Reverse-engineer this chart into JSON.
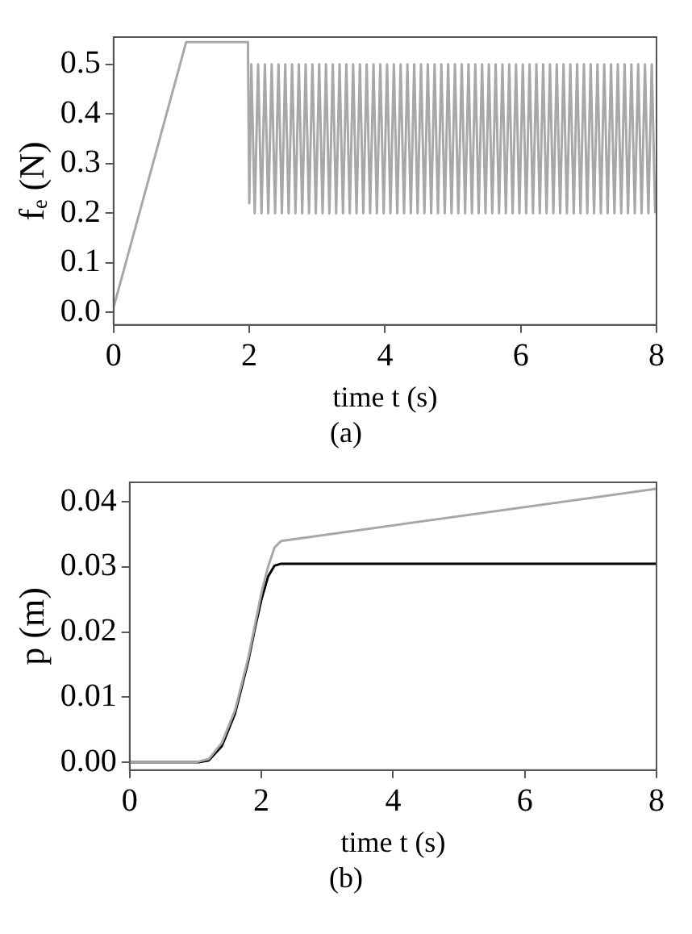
{
  "chart_data": [
    {
      "type": "line",
      "xlabel": "time t (s)",
      "ylabel": "fₑ (N)",
      "annotations": [
        "(a)"
      ],
      "xlim": [
        0,
        8
      ],
      "xticks": [
        0,
        2,
        4,
        6,
        8
      ],
      "ylim": [
        -0.025,
        0.555
      ],
      "yticks": [
        {
          "value": 0,
          "label": "0.0"
        },
        0.1,
        0.2,
        0.3,
        0.4,
        0.5
      ],
      "grid": false,
      "legend": false,
      "marker": "none",
      "series": [
        {
          "color": "#a8a8a8",
          "x": [
            0,
            1.07,
            1.98,
            2.0,
            2.03,
            2.08,
            2.13,
            2.18,
            2.23,
            2.28,
            2.33,
            2.38,
            2.43,
            2.48,
            2.53,
            2.58,
            2.63,
            2.68,
            2.73,
            2.78,
            2.83,
            2.88,
            2.93,
            2.98,
            3.03,
            3.08,
            3.13,
            3.18,
            3.23,
            3.28,
            3.33,
            3.38,
            3.43,
            3.48,
            3.53,
            3.58,
            3.63,
            3.68,
            3.73,
            3.78,
            3.83,
            3.88,
            3.93,
            3.98,
            4.03,
            4.08,
            4.13,
            4.18,
            4.23,
            4.28,
            4.33,
            4.38,
            4.43,
            4.48,
            4.53,
            4.58,
            4.63,
            4.68,
            4.73,
            4.78,
            4.83,
            4.88,
            4.93,
            4.98,
            5.03,
            5.08,
            5.13,
            5.18,
            5.23,
            5.28,
            5.33,
            5.38,
            5.43,
            5.48,
            5.53,
            5.58,
            5.63,
            5.68,
            5.73,
            5.78,
            5.83,
            5.88,
            5.93,
            5.98,
            6.03,
            6.08,
            6.13,
            6.18,
            6.23,
            6.28,
            6.33,
            6.38,
            6.43,
            6.48,
            6.53,
            6.58,
            6.63,
            6.68,
            6.73,
            6.78,
            6.83,
            6.88,
            6.93,
            6.98,
            7.03,
            7.08,
            7.13,
            7.18,
            7.23,
            7.28,
            7.33,
            7.38,
            7.43,
            7.48,
            7.53,
            7.58,
            7.63,
            7.68,
            7.73,
            7.78,
            7.83,
            7.88,
            7.93,
            7.98
          ],
          "values": [
            0.01,
            0.545,
            0.545,
            0.22,
            0.5,
            0.2,
            0.5,
            0.2,
            0.5,
            0.2,
            0.5,
            0.2,
            0.5,
            0.2,
            0.5,
            0.2,
            0.5,
            0.2,
            0.5,
            0.2,
            0.5,
            0.2,
            0.5,
            0.2,
            0.5,
            0.2,
            0.5,
            0.2,
            0.5,
            0.2,
            0.5,
            0.2,
            0.5,
            0.2,
            0.5,
            0.2,
            0.5,
            0.2,
            0.5,
            0.2,
            0.5,
            0.2,
            0.5,
            0.2,
            0.5,
            0.2,
            0.5,
            0.2,
            0.5,
            0.2,
            0.5,
            0.2,
            0.5,
            0.2,
            0.5,
            0.2,
            0.5,
            0.2,
            0.5,
            0.2,
            0.5,
            0.2,
            0.5,
            0.2,
            0.5,
            0.2,
            0.5,
            0.2,
            0.5,
            0.2,
            0.5,
            0.2,
            0.5,
            0.2,
            0.5,
            0.2,
            0.5,
            0.2,
            0.5,
            0.2,
            0.5,
            0.2,
            0.5,
            0.2,
            0.5,
            0.2,
            0.5,
            0.2,
            0.5,
            0.2,
            0.5,
            0.2,
            0.5,
            0.2,
            0.5,
            0.2,
            0.5,
            0.2,
            0.5,
            0.2,
            0.5,
            0.2,
            0.5,
            0.2,
            0.5,
            0.2,
            0.5,
            0.2,
            0.5,
            0.2,
            0.5,
            0.2,
            0.5,
            0.2,
            0.5,
            0.2,
            0.5,
            0.2,
            0.5,
            0.2,
            0.5,
            0.2,
            0.5,
            0.2
          ]
        }
      ]
    },
    {
      "type": "line",
      "xlabel": "time t (s)",
      "ylabel": "p (m)",
      "annotations": [
        "(b)"
      ],
      "xlim": [
        0,
        8
      ],
      "xticks": [
        0,
        2,
        4,
        6,
        8
      ],
      "ylim": [
        -0.0012,
        0.043
      ],
      "yticks": [
        {
          "value": 0,
          "label": "0.00"
        },
        0.01,
        0.02,
        0.03,
        0.04
      ],
      "grid": false,
      "legend": false,
      "marker": "none",
      "series": [
        {
          "color": "#a8a8a8",
          "x": [
            0,
            1.0,
            1.2,
            1.4,
            1.6,
            1.8,
            2.0,
            2.1,
            2.2,
            2.3,
            8
          ],
          "values": [
            0,
            0,
            0.0005,
            0.003,
            0.008,
            0.016,
            0.026,
            0.03,
            0.033,
            0.034,
            0.042
          ]
        },
        {
          "color": "#000000",
          "x": [
            0,
            1.05,
            1.2,
            1.4,
            1.6,
            1.8,
            1.9,
            2.0,
            2.1,
            2.2,
            2.3,
            8
          ],
          "values": [
            0,
            0,
            0.0003,
            0.0025,
            0.0075,
            0.0155,
            0.0205,
            0.025,
            0.0285,
            0.0302,
            0.0305,
            0.0305
          ]
        }
      ]
    }
  ]
}
